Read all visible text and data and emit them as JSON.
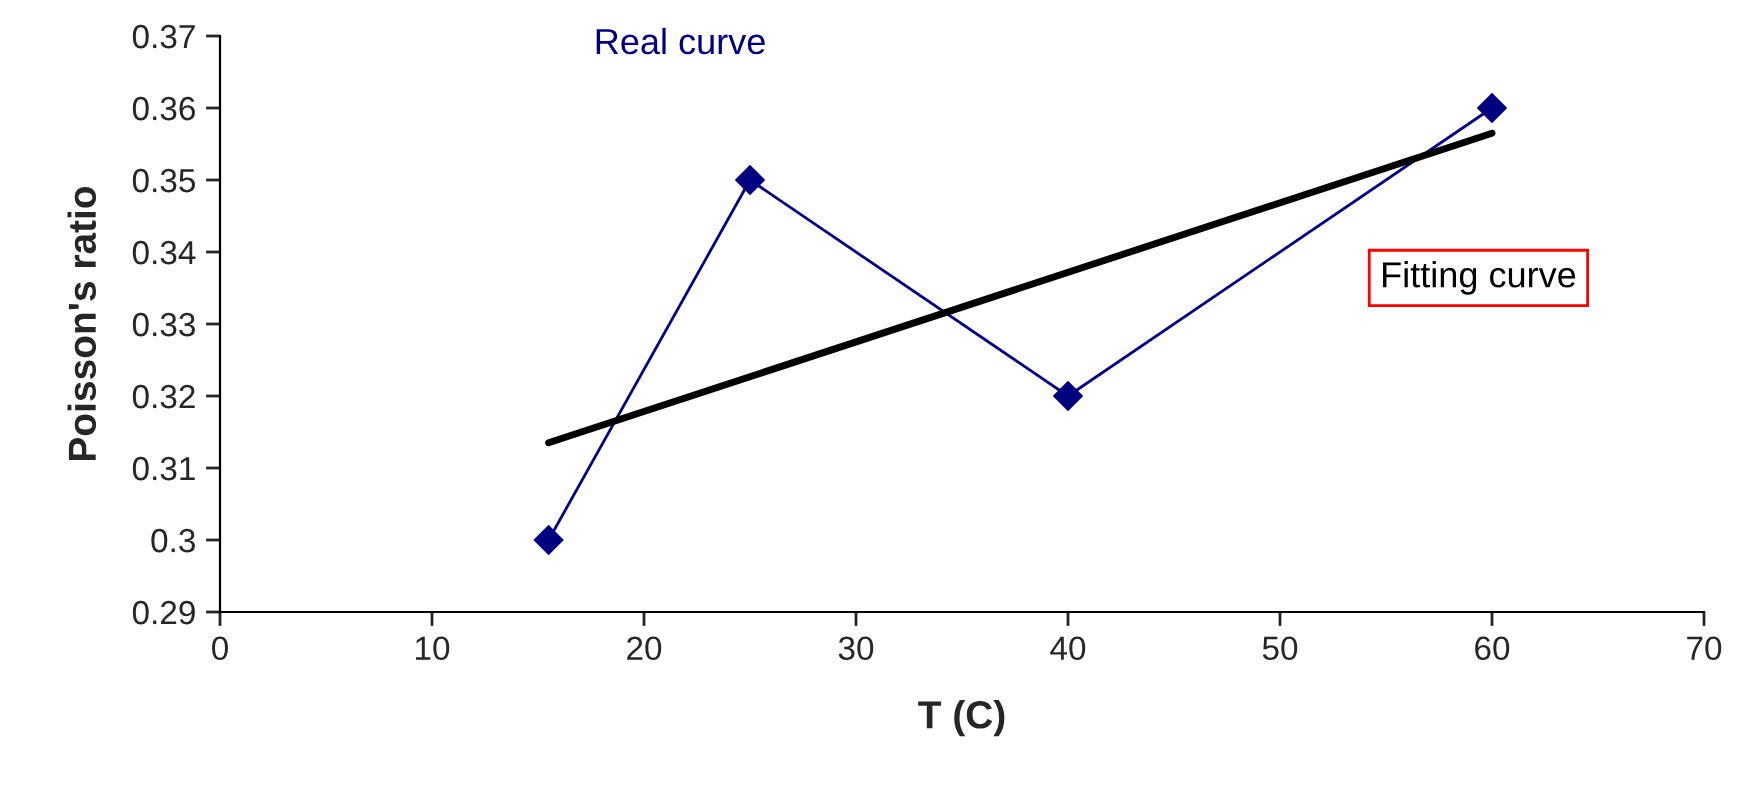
{
  "chart_data": {
    "type": "line",
    "xlabel": "T (C)",
    "ylabel": "Poisson's ratio",
    "xlim": [
      0,
      70
    ],
    "xticks": [
      0,
      10,
      20,
      30,
      40,
      50,
      60,
      70
    ],
    "ylim": [
      0.29,
      0.37
    ],
    "yticks": [
      0.29,
      0.3,
      0.31,
      0.32,
      0.33,
      0.34,
      0.35,
      0.36,
      0.37
    ],
    "grid": false,
    "legend": false,
    "series": [
      {
        "name": "Real curve",
        "color": "#000080",
        "marker": "diamond",
        "x": [
          15.5,
          25,
          40,
          60
        ],
        "values": [
          0.3,
          0.35,
          0.32,
          0.36
        ]
      },
      {
        "name": "Fitting curve",
        "color": "#000000",
        "marker": "none",
        "x": [
          15.5,
          60
        ],
        "values": [
          0.3135,
          0.3565
        ]
      }
    ]
  }
}
